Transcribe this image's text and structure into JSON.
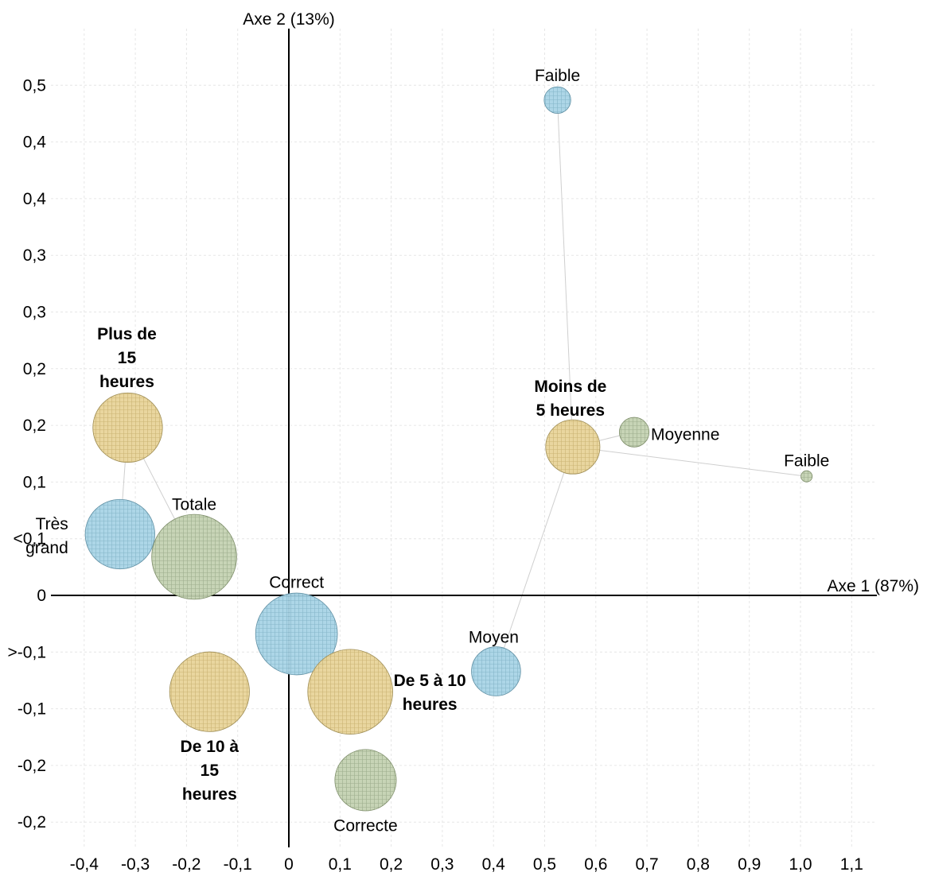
{
  "chart_data": {
    "type": "scatter",
    "subtype": "bubble",
    "x_axis_title": "Axe 1 (87%)",
    "y_axis_title": "Axe 2 (13%)",
    "xlim": [
      -0.46,
      1.15
    ],
    "ylim": [
      -0.445,
      0.515
    ],
    "x_ticks": [
      {
        "value": -0.4,
        "label": "-0,4"
      },
      {
        "value": -0.3,
        "label": "-0,3"
      },
      {
        "value": -0.2,
        "label": "-0,2"
      },
      {
        "value": -0.1,
        "label": "-0,1"
      },
      {
        "value": 0.0,
        "label": "0"
      },
      {
        "value": 0.1,
        "label": "0,1"
      },
      {
        "value": 0.2,
        "label": "0,2"
      },
      {
        "value": 0.3,
        "label": "0,3"
      },
      {
        "value": 0.4,
        "label": "0,4"
      },
      {
        "value": 0.5,
        "label": "0,5"
      },
      {
        "value": 0.6,
        "label": "0,6"
      },
      {
        "value": 0.7,
        "label": "0,7"
      },
      {
        "value": 0.8,
        "label": "0,8"
      },
      {
        "value": 0.9,
        "label": "0,9"
      },
      {
        "value": 1.0,
        "label": "1,0"
      },
      {
        "value": 1.1,
        "label": "1,1"
      }
    ],
    "y_ticks": [
      {
        "value": 0.45,
        "label": "0,5"
      },
      {
        "value": 0.4,
        "label": "0,4"
      },
      {
        "value": 0.35,
        "label": "0,4"
      },
      {
        "value": 0.3,
        "label": "0,3"
      },
      {
        "value": 0.25,
        "label": "0,3"
      },
      {
        "value": 0.2,
        "label": "0,2"
      },
      {
        "value": 0.15,
        "label": "0,2"
      },
      {
        "value": 0.1,
        "label": "0,1"
      },
      {
        "value": 0.05,
        "label": "<0,1"
      },
      {
        "value": 0.0,
        "label": "0"
      },
      {
        "value": -0.05,
        "label": ">-0,1"
      },
      {
        "value": -0.1,
        "label": "-0,1"
      },
      {
        "value": -0.15,
        "label": "-0,2"
      },
      {
        "value": -0.2,
        "label": "-0,2"
      }
    ],
    "grid": true,
    "colors": {
      "blue": "#a9d4e6",
      "blue_edge": "#5f8fa3",
      "yellow": "#e8d49a",
      "yellow_edge": "#9e8d55",
      "green": "#c4d2b2",
      "green_edge": "#7c8c68",
      "connector": "#cfcfcf",
      "axis": "#000000",
      "grid": "#e6e6e6"
    },
    "points": [
      {
        "label": "Faible",
        "x": 0.525,
        "y": 0.437,
        "r": 0.026,
        "group": "blue",
        "bold": false
      },
      {
        "label": "Moyen",
        "x": 0.405,
        "y": -0.067,
        "r": 0.048,
        "group": "blue",
        "bold": false
      },
      {
        "label": "Correct",
        "x": 0.015,
        "y": -0.034,
        "r": 0.08,
        "group": "blue",
        "bold": false
      },
      {
        "label": "Très grand",
        "x": -0.33,
        "y": 0.054,
        "r": 0.068,
        "group": "blue",
        "bold": false
      },
      {
        "label": "Moins de 5 heures",
        "x": 0.555,
        "y": 0.131,
        "r": 0.053,
        "group": "yellow",
        "bold": true
      },
      {
        "label": "Plus de 15 heures",
        "x": -0.315,
        "y": 0.148,
        "r": 0.068,
        "group": "yellow",
        "bold": true
      },
      {
        "label": "De 10 à 15 heures",
        "x": -0.155,
        "y": -0.085,
        "r": 0.078,
        "group": "yellow",
        "bold": true
      },
      {
        "label": "De 5 à 10 heures",
        "x": 0.12,
        "y": -0.085,
        "r": 0.083,
        "group": "yellow",
        "bold": true
      },
      {
        "label": "Moyenne",
        "x": 0.675,
        "y": 0.144,
        "r": 0.029,
        "group": "green",
        "bold": false
      },
      {
        "label": "Faible",
        "x": 1.012,
        "y": 0.105,
        "r": 0.011,
        "group": "green",
        "bold": false
      },
      {
        "label": "Totale",
        "x": -0.185,
        "y": 0.034,
        "r": 0.083,
        "group": "green",
        "bold": false
      },
      {
        "label": "Correcte",
        "x": 0.15,
        "y": -0.163,
        "r": 0.06,
        "group": "green",
        "bold": false
      }
    ],
    "connectors": [
      {
        "from": 0,
        "to": 4
      },
      {
        "from": 1,
        "to": 4
      },
      {
        "from": 8,
        "to": 4
      },
      {
        "from": 9,
        "to": 4
      },
      {
        "from": 3,
        "to": 5
      },
      {
        "from": 10,
        "to": 5
      }
    ]
  }
}
